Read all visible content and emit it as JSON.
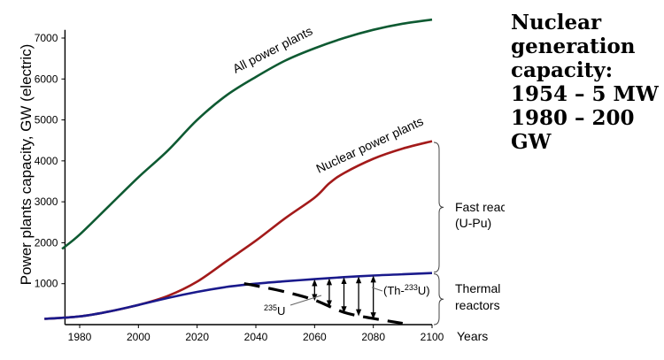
{
  "side_title": [
    "Nuclear",
    "generation",
    "capacity:",
    "1954 – 5 MW",
    "1980 – 200",
    "GW"
  ],
  "chart_data": {
    "type": "line",
    "title": "",
    "ylabel": "Power plants capacity, GW (electric)",
    "xlabel": "Years",
    "xlim": [
      1975,
      2100
    ],
    "ylim": [
      0,
      7200
    ],
    "x_ticks": [
      1980,
      2000,
      2020,
      2040,
      2060,
      2080,
      2100
    ],
    "y_ticks": [
      1000,
      2000,
      3000,
      4000,
      5000,
      6000,
      7000
    ],
    "grid": false,
    "series": [
      {
        "name": "All power plants",
        "color": "#0e5a32",
        "x": [
          1974,
          1980,
          1990,
          2000,
          2010,
          2020,
          2030,
          2040,
          2050,
          2060,
          2070,
          2080,
          2090,
          2100
        ],
        "y": [
          1850,
          2200,
          2900,
          3600,
          4250,
          5000,
          5600,
          6050,
          6450,
          6750,
          7000,
          7200,
          7350,
          7450
        ]
      },
      {
        "name": "Nuclear power plants",
        "color": "#a31a1a",
        "x": [
          1968,
          1980,
          1990,
          2000,
          2010,
          2020,
          2030,
          2040,
          2050,
          2060,
          2065,
          2070,
          2080,
          2090,
          2100
        ],
        "y": [
          140,
          200,
          320,
          480,
          700,
          1050,
          1550,
          2050,
          2600,
          3100,
          3450,
          3700,
          4050,
          4300,
          4480
        ]
      },
      {
        "name": "Thermal reactors",
        "color": "#1a1a8c",
        "x": [
          1968,
          1980,
          1990,
          2000,
          2010,
          2020,
          2030,
          2040,
          2050,
          2060,
          2070,
          2080,
          2090,
          2100
        ],
        "y": [
          140,
          200,
          320,
          480,
          650,
          800,
          920,
          1000,
          1060,
          1110,
          1160,
          1200,
          1230,
          1260
        ]
      },
      {
        "name": "235U",
        "color": "#000000",
        "dashed": true,
        "x": [
          2036,
          2040,
          2050,
          2060,
          2070,
          2080,
          2090
        ],
        "y": [
          1000,
          950,
          800,
          600,
          300,
          150,
          30
        ]
      }
    ],
    "annotations": {
      "all_plants_label": "All power plants",
      "nuclear_label": "Nuclear power plants",
      "fast_reactors": [
        "Fast reactors",
        "(U-Pu)"
      ],
      "thermal_reactors": [
        "Thermal",
        "reactors"
      ],
      "u235_label": "235",
      "u235_suffix": "U",
      "th_label_prefix": "(Th-",
      "th_label_sup": "233",
      "th_label_suffix": "U)",
      "arrow_years": [
        2060,
        2065,
        2070,
        2075,
        2080
      ]
    }
  }
}
